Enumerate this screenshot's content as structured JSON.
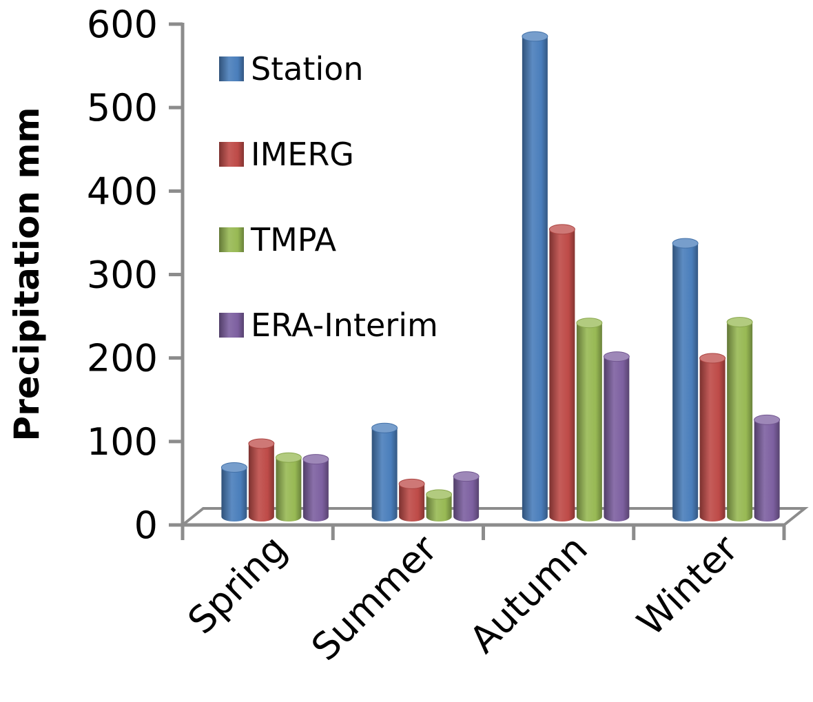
{
  "chart_data": {
    "type": "bar",
    "style": "3d-cylinder",
    "title": "",
    "xlabel": "",
    "ylabel": "Precipitation mm",
    "ylim": [
      0,
      600
    ],
    "yticks": [
      "0",
      "100",
      "200",
      "300",
      "400",
      "500",
      "600"
    ],
    "grid": false,
    "legend_position": "top-left",
    "categories": [
      "Spring",
      "Summer",
      "Autumn",
      "Winter"
    ],
    "series": [
      {
        "name": "Station",
        "color": "#4a7ebb",
        "values": [
          60,
          108,
          585,
          333
        ]
      },
      {
        "name": "IMERG",
        "color": "#be4b48",
        "values": [
          89,
          40,
          350,
          193
        ]
      },
      {
        "name": "TMPA",
        "color": "#98b954",
        "values": [
          72,
          27,
          236,
          237
        ]
      },
      {
        "name": "ERA-Interim",
        "color": "#7d60a0",
        "values": [
          70,
          49,
          195,
          118
        ]
      }
    ]
  }
}
